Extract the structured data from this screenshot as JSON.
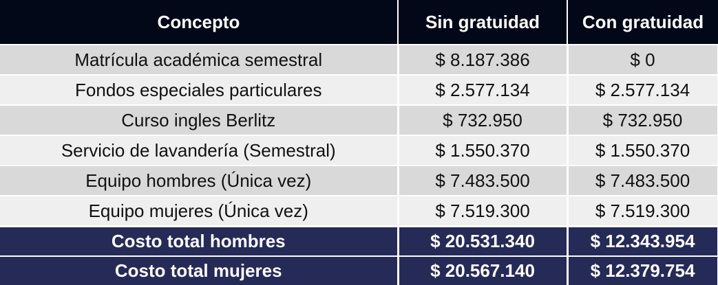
{
  "table": {
    "headers": [
      "Concepto",
      "Sin gratuidad",
      "Con gratuidad"
    ],
    "rows": [
      [
        "Matrícula académica semestral",
        "$ 8.187.386",
        "$ 0"
      ],
      [
        "Fondos especiales particulares",
        "$ 2.577.134",
        "$ 2.577.134"
      ],
      [
        "Curso ingles Berlitz",
        "$ 732.950",
        "$ 732.950"
      ],
      [
        "Servicio de lavandería (Semestral)",
        "$ 1.550.370",
        "$ 1.550.370"
      ],
      [
        "Equipo hombres (Única vez)",
        "$ 7.483.500",
        "$ 7.483.500"
      ],
      [
        "Equipo mujeres (Única vez)",
        "$ 7.519.300",
        "$ 7.519.300"
      ]
    ],
    "totals": [
      [
        "Costo total hombres",
        "$ 20.531.340",
        "$ 12.343.954"
      ],
      [
        "Costo total mujeres",
        "$ 20.567.140",
        "$ 12.379.754"
      ]
    ]
  },
  "colors": {
    "header_bg": "#020817",
    "total_bg": "#262a56",
    "row_odd_bg": "#d9d9d9",
    "row_even_bg": "#efefef"
  }
}
